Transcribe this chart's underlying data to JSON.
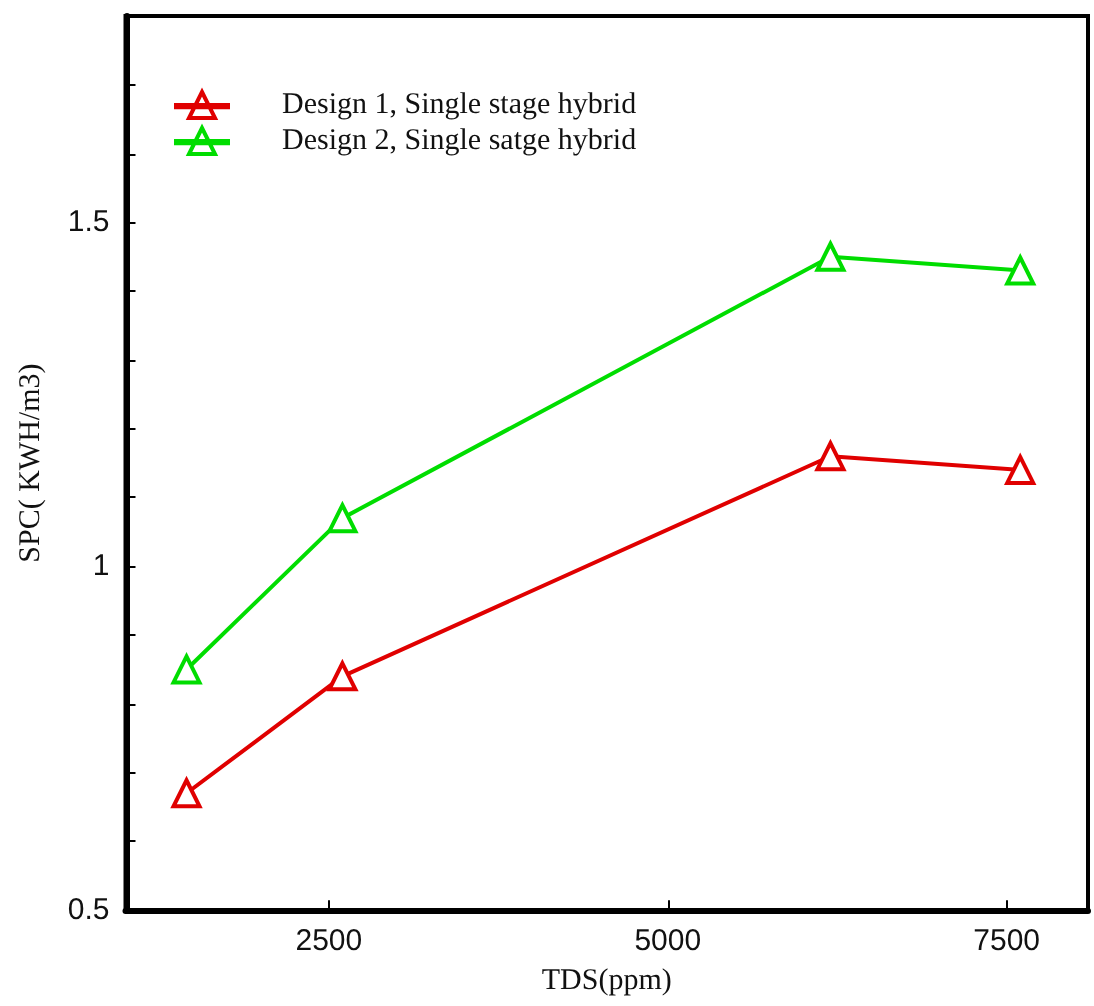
{
  "chart_data": {
    "type": "line",
    "xlabel": "TDS(ppm)",
    "ylabel": "SPC( KWH/m3)",
    "x": [
      1450,
      2600,
      6200,
      7600
    ],
    "series": [
      {
        "name": "Design 1, Single stage hybrid",
        "color": "#e00000",
        "values": [
          0.67,
          0.84,
          1.16,
          1.14
        ]
      },
      {
        "name": "Design 2, Single satge hybrid",
        "color": "#00dd00",
        "values": [
          0.85,
          1.07,
          1.45,
          1.43
        ]
      }
    ],
    "xlim": [
      1000,
      8100
    ],
    "xticks": [
      2500,
      5000,
      7500
    ],
    "ylim": [
      0.5,
      1.8
    ],
    "yticks": [
      0.5,
      {
        "value": 0.6,
        "label": null
      },
      {
        "value": 0.7,
        "label": null
      },
      {
        "value": 0.8,
        "label": null
      },
      {
        "value": 0.9,
        "label": null
      },
      1,
      {
        "value": 1.1,
        "label": null
      },
      {
        "value": 1.2,
        "label": null
      },
      {
        "value": 1.3,
        "label": null
      },
      {
        "value": 1.4,
        "label": null
      },
      1.5,
      {
        "value": 1.6,
        "label": null
      },
      {
        "value": 1.7,
        "label": null
      }
    ],
    "grid": false,
    "legend": "top left",
    "marker": "triangle",
    "line_style": "solid"
  }
}
